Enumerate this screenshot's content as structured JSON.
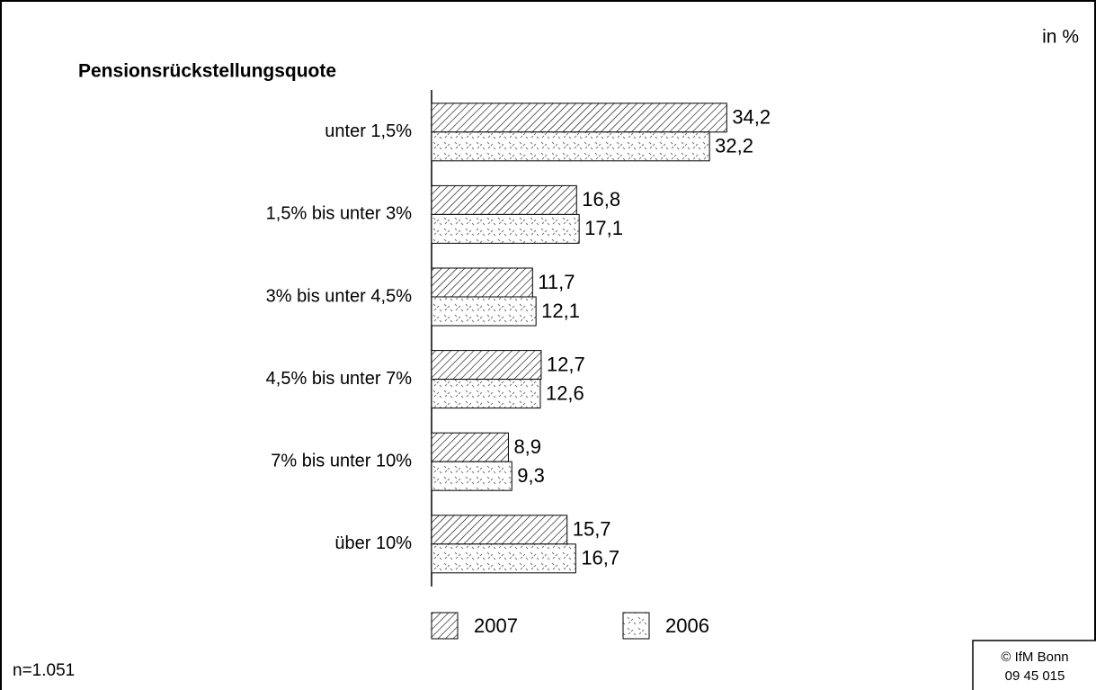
{
  "chart_data": {
    "type": "bar",
    "orientation": "horizontal",
    "title": "Pensionsrückstellungsquote",
    "unit": "in %",
    "note": "n=1.051",
    "source": [
      "© IfM Bonn",
      "09 45 015"
    ],
    "categories": [
      "unter 1,5%",
      "1,5% bis unter 3%",
      "3% bis unter 4,5%",
      "4,5% bis unter 7%",
      "7% bis unter 10%",
      "über 10%"
    ],
    "series": [
      {
        "name": "2007",
        "color": "#000000",
        "pattern": "diagonal",
        "values": [
          34.2,
          16.8,
          11.7,
          12.7,
          8.9,
          15.7
        ],
        "value_labels": [
          "34,2",
          "16,8",
          "11,7",
          "12,7",
          "8,9",
          "15,7"
        ]
      },
      {
        "name": "2006",
        "color": "#000000",
        "pattern": "dots",
        "values": [
          32.2,
          17.1,
          12.1,
          12.6,
          9.3,
          16.7
        ],
        "value_labels": [
          "32,2",
          "17,1",
          "12,1",
          "12,6",
          "9,3",
          "16,7"
        ]
      }
    ],
    "xlim": [
      0,
      40
    ],
    "legend": "bottom"
  }
}
